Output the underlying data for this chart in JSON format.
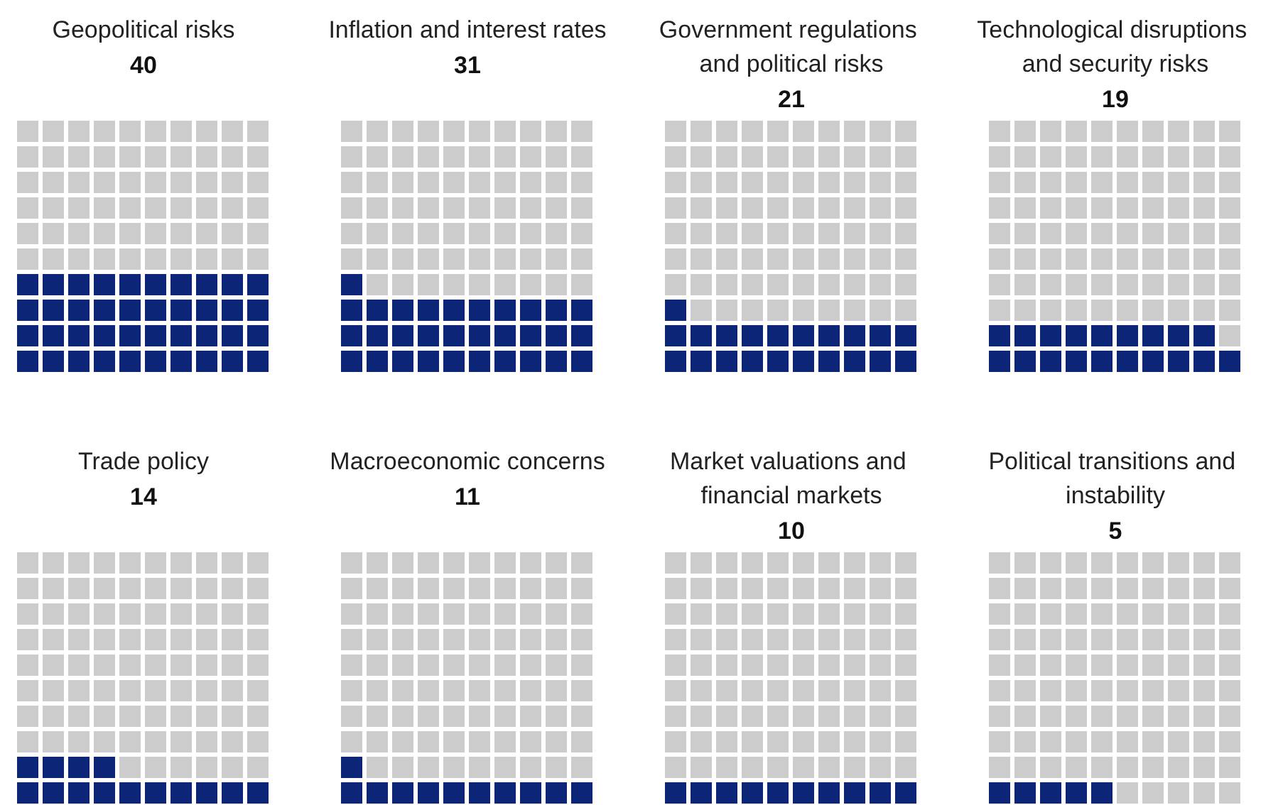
{
  "chart_data": [
    {
      "type": "other",
      "title": "Geopolitical risks",
      "values": [
        40
      ],
      "color": "#0c2577",
      "data_labels": true
    },
    {
      "type": "other",
      "title": "Inflation and interest rates",
      "values": [
        31
      ],
      "color": "#0c2577",
      "data_labels": true
    },
    {
      "type": "other",
      "title": "Government regulations and political risks",
      "values": [
        21
      ],
      "color": "#0c2577",
      "data_labels": true
    },
    {
      "type": "other",
      "title": "Technological disruptions and security risks",
      "values": [
        19
      ],
      "color": "#0c2577",
      "data_labels": true
    },
    {
      "type": "other",
      "title": "Trade policy",
      "values": [
        14
      ],
      "color": "#0c2577",
      "data_labels": true
    },
    {
      "type": "other",
      "title": "Macroeconomic concerns",
      "values": [
        11
      ],
      "color": "#0c2577",
      "data_labels": true
    },
    {
      "type": "other",
      "title": "Market valuations and financial markets",
      "values": [
        10
      ],
      "color": "#0c2577",
      "data_labels": true
    },
    {
      "type": "other",
      "title": "Political transitions and instability",
      "values": [
        5
      ],
      "color": "#0c2577",
      "data_labels": true
    }
  ]
}
